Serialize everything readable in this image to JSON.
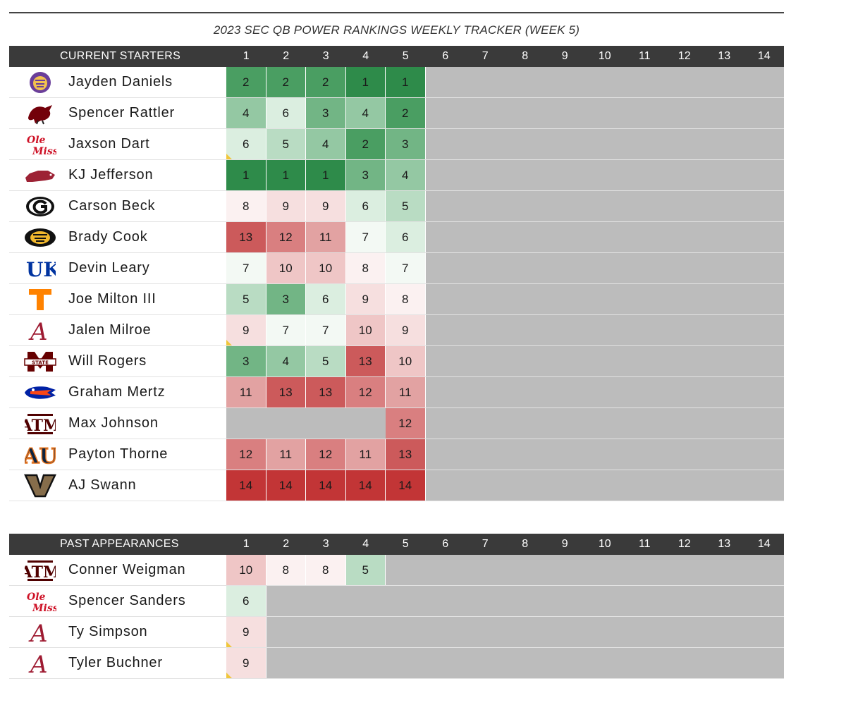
{
  "title": "2023 SEC QB POWER RANKINGS WEEKLY TRACKER (WEEK 5)",
  "weeks": [
    "1",
    "2",
    "3",
    "4",
    "5",
    "6",
    "7",
    "8",
    "9",
    "10",
    "11",
    "12",
    "13",
    "14"
  ],
  "colors": {
    "header_bg": "#3a3a3a",
    "empty_cell": "#bcbcbc",
    "scale": {
      "1": "#2e8b4a",
      "2": "#4a9e62",
      "3": "#72b585",
      "4": "#94c8a3",
      "5": "#b9dcc3",
      "6": "#dbeee0",
      "7": "#f3f9f4",
      "8": "#fbf1f1",
      "9": "#f6dfdf",
      "10": "#efc6c6",
      "11": "#e2a2a2",
      "12": "#d97f80",
      "13": "#cc5a5b",
      "14": "#c23536"
    }
  },
  "current": {
    "header": "CURRENT STARTERS",
    "rows": [
      {
        "name": "Jayden Daniels",
        "logo": "lsu-tiger-icon",
        "ranks": [
          "2",
          "2",
          "2",
          "1",
          "1"
        ],
        "flags": []
      },
      {
        "name": "Spencer Rattler",
        "logo": "gamecock-icon",
        "ranks": [
          "4",
          "6",
          "3",
          "4",
          "2"
        ],
        "flags": []
      },
      {
        "name": "Jaxson Dart",
        "logo": "ole-miss-icon",
        "ranks": [
          "6",
          "5",
          "4",
          "2",
          "3"
        ],
        "flags": [
          0
        ]
      },
      {
        "name": "KJ Jefferson",
        "logo": "razorback-icon",
        "ranks": [
          "1",
          "1",
          "1",
          "3",
          "4"
        ],
        "flags": []
      },
      {
        "name": "Carson Beck",
        "logo": "georgia-g-icon",
        "ranks": [
          "8",
          "9",
          "9",
          "6",
          "5"
        ],
        "flags": []
      },
      {
        "name": "Brady Cook",
        "logo": "missouri-tiger-icon",
        "ranks": [
          "13",
          "12",
          "11",
          "7",
          "6"
        ],
        "flags": []
      },
      {
        "name": "Devin Leary",
        "logo": "kentucky-uk-icon",
        "ranks": [
          "7",
          "10",
          "10",
          "8",
          "7"
        ],
        "flags": []
      },
      {
        "name": "Joe Milton III",
        "logo": "tennessee-t-icon",
        "ranks": [
          "5",
          "3",
          "6",
          "9",
          "8"
        ],
        "flags": []
      },
      {
        "name": "Jalen Milroe",
        "logo": "alabama-a-icon",
        "ranks": [
          "9",
          "7",
          "7",
          "10",
          "9"
        ],
        "flags": [
          0
        ]
      },
      {
        "name": "Will Rogers",
        "logo": "mississippi-state-icon",
        "ranks": [
          "3",
          "4",
          "5",
          "13",
          "10"
        ],
        "flags": []
      },
      {
        "name": "Graham Mertz",
        "logo": "florida-gator-icon",
        "ranks": [
          "11",
          "13",
          "13",
          "12",
          "11"
        ],
        "flags": []
      },
      {
        "name": "Max Johnson",
        "logo": "texas-am-icon",
        "ranks": [
          "",
          "",
          "",
          "",
          "12"
        ],
        "flags": []
      },
      {
        "name": "Payton Thorne",
        "logo": "auburn-au-icon",
        "ranks": [
          "12",
          "11",
          "12",
          "11",
          "13"
        ],
        "flags": []
      },
      {
        "name": "AJ Swann",
        "logo": "vanderbilt-v-icon",
        "ranks": [
          "14",
          "14",
          "14",
          "14",
          "14"
        ],
        "flags": []
      }
    ]
  },
  "past": {
    "header": "PAST APPEARANCES",
    "rows": [
      {
        "name": "Conner Weigman",
        "logo": "texas-am-icon",
        "ranks": [
          "10",
          "8",
          "8",
          "5"
        ],
        "flags": []
      },
      {
        "name": "Spencer Sanders",
        "logo": "ole-miss-icon",
        "ranks": [
          "6"
        ],
        "flags": []
      },
      {
        "name": "Ty Simpson",
        "logo": "alabama-a-icon",
        "ranks": [
          "9"
        ],
        "flags": [
          0
        ]
      },
      {
        "name": "Tyler Buchner",
        "logo": "alabama-a-icon",
        "ranks": [
          "9"
        ],
        "flags": [
          0
        ]
      }
    ]
  }
}
